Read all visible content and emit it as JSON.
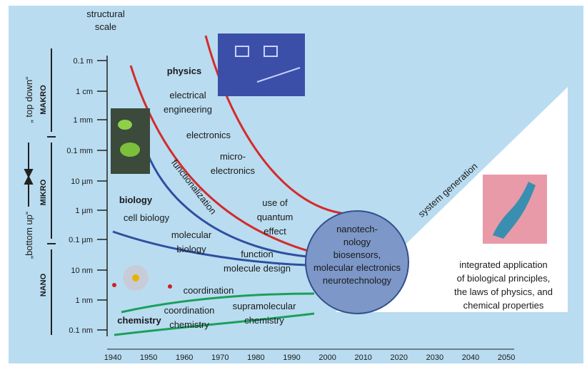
{
  "y_axis": {
    "title": [
      "structural",
      "scale"
    ],
    "ticks": [
      "0.1 m",
      "1 cm",
      "1 mm",
      "0.1 mm",
      "10 µm",
      "1 µm",
      "0.1 µm",
      "10 nm",
      "1 nm",
      "0.1 nm"
    ]
  },
  "x_axis": {
    "ticks": [
      "1940",
      "1950",
      "1960",
      "1970",
      "1980",
      "1990",
      "2000",
      "2010",
      "2020",
      "2030",
      "2040",
      "2050"
    ]
  },
  "scale_ranges": [
    "MAKRO",
    "MIKRO",
    "NANO"
  ],
  "directions": [
    "„ top down“",
    "„bottom up“"
  ],
  "labels": [
    {
      "lines": [
        "physics"
      ],
      "bold": true
    },
    {
      "lines": [
        "electrical",
        "engineering"
      ]
    },
    {
      "lines": [
        "electronics"
      ]
    },
    {
      "lines": [
        "micro-",
        "electronics"
      ]
    },
    {
      "lines": [
        "functionalization"
      ]
    },
    {
      "lines": [
        "biology"
      ],
      "bold": true
    },
    {
      "lines": [
        "cell biology"
      ]
    },
    {
      "lines": [
        "molecular",
        "biology"
      ]
    },
    {
      "lines": [
        "use of",
        "quantum",
        "effect"
      ]
    },
    {
      "lines": [
        "function",
        "molecule design"
      ]
    },
    {
      "lines": [
        "coordination"
      ]
    },
    {
      "lines": [
        "coordination",
        "chemistry"
      ]
    },
    {
      "lines": [
        "supramolecular",
        "chemistry"
      ]
    },
    {
      "lines": [
        "chemistry"
      ],
      "bold": true
    }
  ],
  "circle": {
    "lines": [
      "nanotech-",
      "nology",
      "biosensors,",
      "molecular electronics",
      "neurotechnology"
    ]
  },
  "triangle": {
    "edge": "system generation",
    "lines": [
      "integrated application",
      "of biological principles,",
      "the laws of physics, and",
      "chemical properties"
    ]
  }
}
